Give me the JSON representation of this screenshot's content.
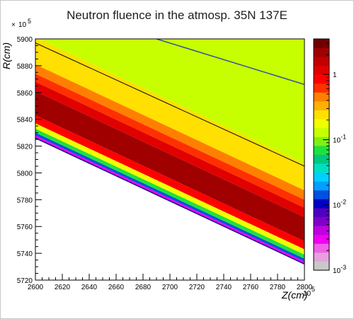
{
  "chart_data": {
    "type": "heatmap",
    "title": "Neutron fluence in the atmosp. 35N 137E",
    "xlabel": "Z(cm)",
    "ylabel": "R(cm)",
    "x_multiplier": "× 10^5",
    "y_multiplier": "× 10^5",
    "xlim": [
      2600,
      2800
    ],
    "ylim": [
      5720,
      5900
    ],
    "x_ticks": [
      "2600",
      "2620",
      "2640",
      "2660",
      "2680",
      "2700",
      "2720",
      "2740",
      "2760",
      "2780",
      "2800"
    ],
    "y_ticks": [
      "5720",
      "5740",
      "5760",
      "5780",
      "5800",
      "5820",
      "5840",
      "5860",
      "5880",
      "5900"
    ],
    "colorbar": {
      "scale": "log",
      "range": [
        0.001,
        3.5
      ],
      "tick_values": [
        1,
        0.1,
        0.01,
        0.001
      ],
      "tick_labels": [
        "1",
        "10^-1",
        "10^-2",
        "10^-3"
      ],
      "colors": [
        "#c8c8c8",
        "#e6a0dc",
        "#f060e8",
        "#f000f0",
        "#c000e0",
        "#8000c8",
        "#5000c0",
        "#0000c8",
        "#0050e0",
        "#00a0ff",
        "#00d0ff",
        "#00e0c0",
        "#00c880",
        "#20e040",
        "#80f010",
        "#c8ff00",
        "#f0ff00",
        "#ffe000",
        "#ffb000",
        "#ff8000",
        "#ff3000",
        "#ff0000",
        "#e00000",
        "#c00000",
        "#a00000",
        "#700000"
      ]
    },
    "regions": {
      "lower_boundary": [
        {
          "z": 2600,
          "r": 5826
        },
        {
          "z": 2800,
          "r": 5732
        }
      ],
      "outer_line": [
        {
          "z": 2600,
          "r": 5897
        },
        {
          "z": 2800,
          "r": 5805
        }
      ],
      "upper_edge": [
        {
          "z": 2690,
          "r": 5900
        },
        {
          "z": 2800,
          "r": 5866
        }
      ],
      "bands": [
        {
          "offset_r": 0,
          "thickness_r": 2,
          "value": 0.003
        },
        {
          "offset_r": 2,
          "thickness_r": 2,
          "value": 0.015
        },
        {
          "offset_r": 4,
          "thickness_r": 3,
          "value": 0.06
        },
        {
          "offset_r": 7,
          "thickness_r": 4,
          "value": 0.2
        },
        {
          "offset_r": 11,
          "thickness_r": 6,
          "value": 0.8
        },
        {
          "offset_r": 17,
          "thickness_r": 18,
          "value": 2.0
        },
        {
          "offset_r": 35,
          "thickness_r": 7,
          "value": 1.2
        },
        {
          "offset_r": 42,
          "thickness_r": 6,
          "value": 0.7
        },
        {
          "offset_r": 48,
          "thickness_r": 7,
          "value": 0.4
        },
        {
          "offset_r": 55,
          "thickness_r": 20,
          "value": 0.22
        },
        {
          "offset_r": 75,
          "thickness_r": 95,
          "value": 0.12
        }
      ]
    }
  }
}
